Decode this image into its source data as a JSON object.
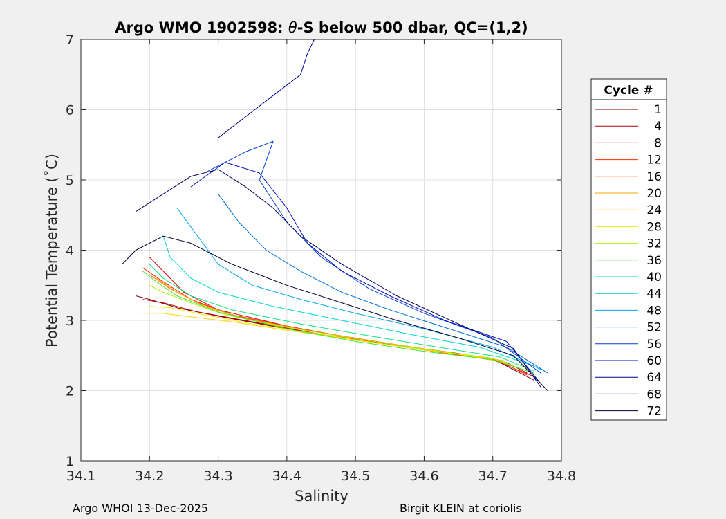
{
  "chart_data": {
    "type": "line",
    "title_parts": [
      "Argo WMO 1902598: ",
      "θ",
      "-S below 500 dbar,  QC=(1,2)"
    ],
    "xlabel": "Salinity",
    "ylabel": "Potential Temperature (˚C)",
    "xlim": [
      34.1,
      34.8
    ],
    "ylim": [
      1,
      7
    ],
    "xticks": [
      "34.1",
      "34.2",
      "34.3",
      "34.4",
      "34.5",
      "34.6",
      "34.7",
      "34.8"
    ],
    "yticks": [
      "1",
      "2",
      "3",
      "4",
      "5",
      "6",
      "7"
    ],
    "grid": true,
    "legend_position": "right",
    "legend_title": "Cycle #",
    "series": [
      {
        "name": "1",
        "color": "#800000",
        "points": [
          [
            34.18,
            3.35
          ],
          [
            34.2,
            3.3
          ],
          [
            34.24,
            3.18
          ],
          [
            34.3,
            3.06
          ],
          [
            34.4,
            2.88
          ],
          [
            34.5,
            2.72
          ],
          [
            34.6,
            2.58
          ],
          [
            34.7,
            2.45
          ],
          [
            34.76,
            2.15
          ]
        ]
      },
      {
        "name": "4",
        "color": "#b30000",
        "points": [
          [
            34.19,
            3.3
          ],
          [
            34.22,
            3.25
          ],
          [
            34.27,
            3.12
          ],
          [
            34.35,
            2.98
          ],
          [
            34.45,
            2.8
          ],
          [
            34.55,
            2.66
          ],
          [
            34.65,
            2.53
          ],
          [
            34.72,
            2.4
          ],
          [
            34.75,
            2.25
          ]
        ]
      },
      {
        "name": "8",
        "color": "#e00000",
        "points": [
          [
            34.2,
            3.9
          ],
          [
            34.22,
            3.7
          ],
          [
            34.25,
            3.4
          ],
          [
            34.3,
            3.15
          ],
          [
            34.4,
            2.92
          ],
          [
            34.5,
            2.74
          ],
          [
            34.6,
            2.58
          ],
          [
            34.7,
            2.44
          ],
          [
            34.76,
            2.2
          ]
        ]
      },
      {
        "name": "12",
        "color": "#ff2a00",
        "points": [
          [
            34.19,
            3.75
          ],
          [
            34.22,
            3.55
          ],
          [
            34.26,
            3.3
          ],
          [
            34.32,
            3.08
          ],
          [
            34.42,
            2.88
          ],
          [
            34.52,
            2.7
          ],
          [
            34.62,
            2.55
          ],
          [
            34.71,
            2.42
          ],
          [
            34.75,
            2.22
          ]
        ]
      },
      {
        "name": "16",
        "color": "#ff6a00",
        "points": [
          [
            34.2,
            3.65
          ],
          [
            34.23,
            3.45
          ],
          [
            34.27,
            3.25
          ],
          [
            34.33,
            3.05
          ],
          [
            34.43,
            2.86
          ],
          [
            34.53,
            2.7
          ],
          [
            34.63,
            2.55
          ],
          [
            34.72,
            2.4
          ]
        ]
      },
      {
        "name": "20",
        "color": "#ffa500",
        "points": [
          [
            34.21,
            3.6
          ],
          [
            34.24,
            3.4
          ],
          [
            34.28,
            3.2
          ],
          [
            34.34,
            3.02
          ],
          [
            34.44,
            2.84
          ],
          [
            34.54,
            2.68
          ],
          [
            34.64,
            2.54
          ],
          [
            34.72,
            2.42
          ]
        ]
      },
      {
        "name": "24",
        "color": "#ffd400",
        "points": [
          [
            34.19,
            3.1
          ],
          [
            34.22,
            3.1
          ],
          [
            34.26,
            3.05
          ],
          [
            34.32,
            2.98
          ],
          [
            34.4,
            2.86
          ],
          [
            34.5,
            2.72
          ],
          [
            34.6,
            2.58
          ],
          [
            34.7,
            2.45
          ]
        ]
      },
      {
        "name": "28",
        "color": "#f0f000",
        "points": [
          [
            34.2,
            3.2
          ],
          [
            34.23,
            3.18
          ],
          [
            34.28,
            3.08
          ],
          [
            34.35,
            2.95
          ],
          [
            34.45,
            2.8
          ],
          [
            34.55,
            2.65
          ],
          [
            34.65,
            2.52
          ],
          [
            34.72,
            2.4
          ]
        ]
      },
      {
        "name": "32",
        "color": "#a8f000",
        "points": [
          [
            34.2,
            3.5
          ],
          [
            34.22,
            3.4
          ],
          [
            34.26,
            3.25
          ],
          [
            34.31,
            3.08
          ],
          [
            34.4,
            2.9
          ],
          [
            34.5,
            2.74
          ],
          [
            34.6,
            2.59
          ],
          [
            34.7,
            2.46
          ],
          [
            34.75,
            2.28
          ]
        ]
      },
      {
        "name": "36",
        "color": "#40e830",
        "points": [
          [
            34.19,
            3.7
          ],
          [
            34.21,
            3.55
          ],
          [
            34.24,
            3.35
          ],
          [
            34.3,
            3.12
          ],
          [
            34.4,
            2.88
          ],
          [
            34.5,
            2.7
          ],
          [
            34.6,
            2.56
          ],
          [
            34.7,
            2.44
          ],
          [
            34.76,
            2.25
          ]
        ]
      },
      {
        "name": "40",
        "color": "#10e080",
        "points": [
          [
            34.2,
            3.8
          ],
          [
            34.22,
            3.6
          ],
          [
            34.26,
            3.35
          ],
          [
            34.32,
            3.15
          ],
          [
            34.42,
            2.95
          ],
          [
            34.52,
            2.78
          ],
          [
            34.62,
            2.62
          ],
          [
            34.71,
            2.48
          ],
          [
            34.76,
            2.28
          ]
        ]
      },
      {
        "name": "44",
        "color": "#00d8c8",
        "points": [
          [
            34.22,
            4.2
          ],
          [
            34.23,
            3.9
          ],
          [
            34.26,
            3.6
          ],
          [
            34.3,
            3.4
          ],
          [
            34.38,
            3.2
          ],
          [
            34.48,
            3.0
          ],
          [
            34.58,
            2.8
          ],
          [
            34.68,
            2.62
          ],
          [
            34.76,
            2.35
          ]
        ]
      },
      {
        "name": "48",
        "color": "#00a8f0",
        "points": [
          [
            34.24,
            4.6
          ],
          [
            34.27,
            4.2
          ],
          [
            34.3,
            3.8
          ],
          [
            34.35,
            3.5
          ],
          [
            34.42,
            3.3
          ],
          [
            34.5,
            3.1
          ],
          [
            34.6,
            2.88
          ],
          [
            34.7,
            2.62
          ],
          [
            34.77,
            2.3
          ]
        ]
      },
      {
        "name": "52",
        "color": "#0070e0",
        "points": [
          [
            34.3,
            4.8
          ],
          [
            34.33,
            4.4
          ],
          [
            34.37,
            4.0
          ],
          [
            34.42,
            3.7
          ],
          [
            34.48,
            3.4
          ],
          [
            34.55,
            3.15
          ],
          [
            34.63,
            2.9
          ],
          [
            34.72,
            2.62
          ],
          [
            34.78,
            2.25
          ]
        ]
      },
      {
        "name": "56",
        "color": "#0040d8",
        "points": [
          [
            34.28,
            5.1
          ],
          [
            34.34,
            5.4
          ],
          [
            34.38,
            5.55
          ],
          [
            34.36,
            5.0
          ],
          [
            34.4,
            4.4
          ],
          [
            34.45,
            3.9
          ],
          [
            34.52,
            3.45
          ],
          [
            34.6,
            3.1
          ],
          [
            34.7,
            2.75
          ],
          [
            34.77,
            2.25
          ]
        ]
      },
      {
        "name": "60",
        "color": "#0010c0",
        "points": [
          [
            34.26,
            4.9
          ],
          [
            34.31,
            5.25
          ],
          [
            34.36,
            5.1
          ],
          [
            34.4,
            4.6
          ],
          [
            34.43,
            4.1
          ],
          [
            34.48,
            3.7
          ],
          [
            34.55,
            3.35
          ],
          [
            34.63,
            3.0
          ],
          [
            34.72,
            2.7
          ],
          [
            34.77,
            2.1
          ]
        ]
      },
      {
        "name": "64",
        "color": "#000090",
        "points": [
          [
            34.3,
            5.6
          ],
          [
            34.34,
            5.9
          ],
          [
            34.38,
            6.2
          ],
          [
            34.42,
            6.5
          ],
          [
            34.43,
            6.8
          ],
          [
            34.44,
            7.0
          ]
        ]
      },
      {
        "name": "68",
        "color": "#000060",
        "points": [
          [
            34.18,
            4.55
          ],
          [
            34.22,
            4.8
          ],
          [
            34.26,
            5.05
          ],
          [
            34.3,
            5.15
          ],
          [
            34.34,
            4.9
          ],
          [
            34.38,
            4.6
          ],
          [
            34.42,
            4.2
          ],
          [
            34.48,
            3.8
          ],
          [
            34.56,
            3.35
          ],
          [
            34.65,
            2.95
          ],
          [
            34.73,
            2.6
          ],
          [
            34.77,
            2.05
          ]
        ]
      },
      {
        "name": "72",
        "color": "#000030",
        "points": [
          [
            34.16,
            3.8
          ],
          [
            34.18,
            4.0
          ],
          [
            34.22,
            4.2
          ],
          [
            34.26,
            4.1
          ],
          [
            34.32,
            3.8
          ],
          [
            34.4,
            3.5
          ],
          [
            34.48,
            3.25
          ],
          [
            34.56,
            3.0
          ],
          [
            34.65,
            2.75
          ],
          [
            34.73,
            2.5
          ],
          [
            34.78,
            2.0
          ]
        ]
      }
    ]
  },
  "footer": {
    "left": "Argo WHOI 13-Dec-2025",
    "right": "Birgit KLEIN at coriolis"
  }
}
